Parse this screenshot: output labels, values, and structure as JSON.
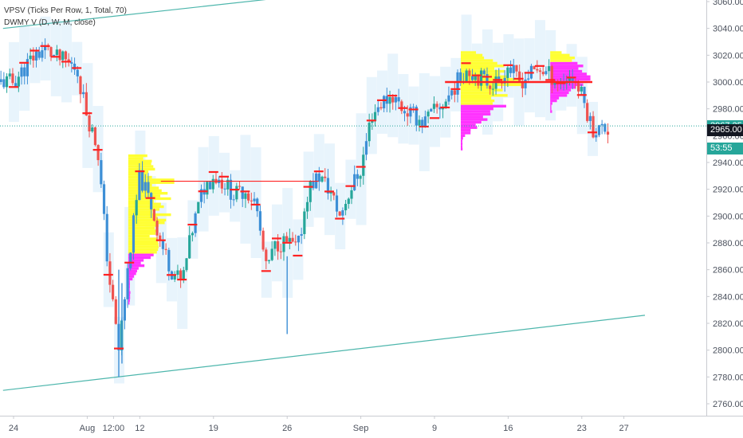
{
  "legend": {
    "line1": "VPSV (Ticks Per Row, 1, Total, 70)",
    "line2": "DWMY V (D, W, M, close)"
  },
  "price_tags": {
    "last": "2967.25",
    "current": "2965.00",
    "countdown": "53:55"
  },
  "colors": {
    "up": "#26a69a",
    "down": "#ef5350",
    "candle_blue": "#3d8fd6",
    "channel": "#4db6ac",
    "vp_yellow": "#ffff33",
    "vp_magenta": "#ff33ff",
    "poc_red": "#ff2222",
    "last_price": "#26a69a",
    "current_price": "#131722",
    "countdown_bg": "#26a69a",
    "value_area": "#e6f3fc"
  },
  "chart_data": {
    "type": "line",
    "title": "",
    "xlabel": "",
    "ylabel": "",
    "ylim": [
      2750,
      3065
    ],
    "y_ticks": [
      2760,
      2780,
      2800,
      2820,
      2840,
      2860,
      2880,
      2900,
      2920,
      2940,
      2960,
      2980,
      3000,
      3020,
      3040,
      3060
    ],
    "y_tick_labels": [
      "2760.00",
      "2780.00",
      "2800.00",
      "2820.00",
      "2840.00",
      "2860.00",
      "2880.00",
      "2900.00",
      "2920.00",
      "2940.00",
      "2960.00",
      "2980.00",
      "3000.00",
      "3020.00",
      "3040.00",
      "3060.00"
    ],
    "x_tick_labels": [
      "24",
      "Aug",
      "12:00",
      "12",
      "19",
      "26",
      "Sep",
      "9",
      "16",
      "23",
      "27"
    ],
    "x_tick_days": [
      0,
      7,
      9.5,
      12,
      19,
      26,
      33,
      40,
      47,
      54,
      58
    ],
    "xlim": [
      -1,
      60
    ],
    "series": [
      {
        "values_x": [
          0,
          1,
          2,
          3,
          4,
          5,
          6,
          7,
          8,
          9,
          10,
          11,
          12,
          13,
          14,
          15,
          16,
          17,
          18,
          19,
          20,
          21,
          22,
          23,
          24,
          25,
          26,
          27,
          28,
          29,
          30,
          31,
          32,
          33,
          34,
          35,
          36,
          37,
          38,
          39,
          40,
          41,
          42,
          43,
          44,
          45,
          46,
          47,
          48,
          49,
          50,
          51,
          52,
          53,
          54,
          55
        ],
        "values_y": [
          3000,
          3010,
          3020,
          3025,
          3018,
          3015,
          3010,
          2975,
          2950,
          2860,
          2800,
          2870,
          2930,
          2910,
          2880,
          2860,
          2850,
          2890,
          2920,
          2930,
          2925,
          2915,
          2920,
          2910,
          2860,
          2880,
          2880,
          2875,
          2920,
          2930,
          2920,
          2900,
          2920,
          2935,
          2975,
          2985,
          2990,
          2980,
          2975,
          2970,
          2978,
          2985,
          2998,
          3010,
          3005,
          3000,
          3000,
          3012,
          3000,
          3005,
          3010,
          3005,
          3000,
          3005,
          2990,
          2965
        ]
      }
    ],
    "channel_lines": [
      {
        "x": [
          -1,
          28
        ],
        "y": [
          3040,
          3065
        ]
      },
      {
        "x": [
          -1,
          60
        ],
        "y": [
          2770,
          2826
        ]
      }
    ],
    "poc_lines": [
      {
        "x": [
          14,
          29
        ],
        "y": [
          2926,
          2926
        ]
      },
      {
        "x": [
          41,
          55
        ],
        "y": [
          3000,
          3000
        ]
      }
    ],
    "grid": false
  }
}
